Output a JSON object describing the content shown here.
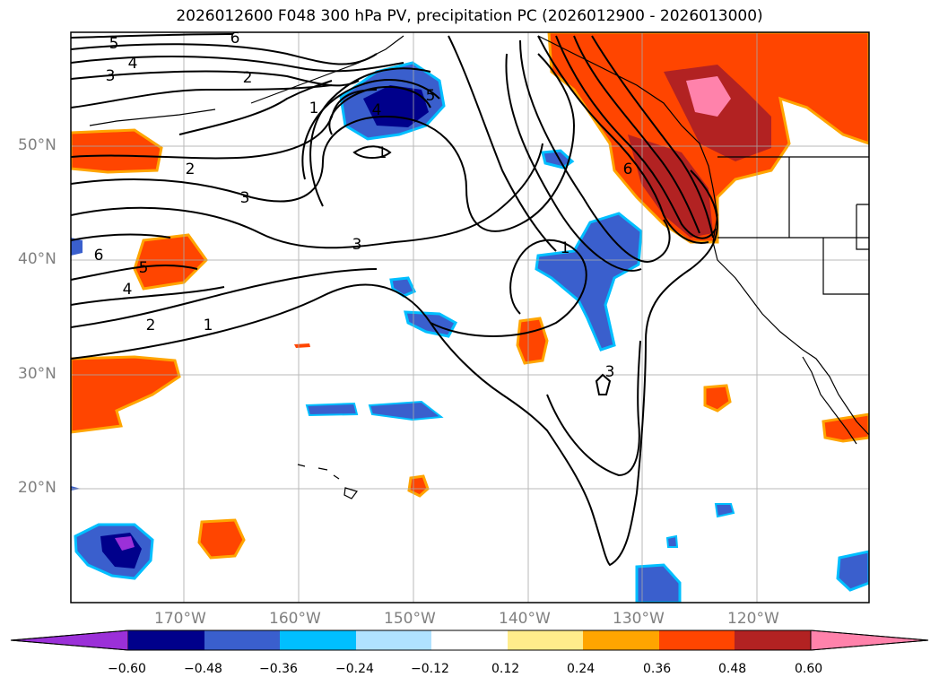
{
  "title": "2026012600 F048 300 hPa PV, precipitation PC (2026012900 - 2026013000)",
  "lat_labels": [
    "50°N",
    "40°N",
    "30°N",
    "20°N"
  ],
  "lon_labels": [
    "170°W",
    "160°W",
    "150°W",
    "140°W",
    "130°W",
    "120°W"
  ],
  "colorbar": {
    "ticks": [
      "−0.60",
      "−0.48",
      "−0.36",
      "−0.24",
      "−0.12",
      "0.12",
      "0.24",
      "0.36",
      "0.48",
      "0.60"
    ],
    "colors": [
      "#9b30d8",
      "#00008b",
      "#3a5fcd",
      "#00bfff",
      "#b0e2ff",
      "#ffffff",
      "#ffec8b",
      "#ffa500",
      "#ff4500",
      "#b22222",
      "#ff82ab"
    ]
  },
  "contour_labels": [
    "5",
    "6",
    "4",
    "3",
    "2",
    "1",
    "2",
    "3",
    "6",
    "5",
    "4",
    "2",
    "1",
    "3",
    "4",
    "5",
    "1",
    "6",
    "1",
    "3"
  ]
}
